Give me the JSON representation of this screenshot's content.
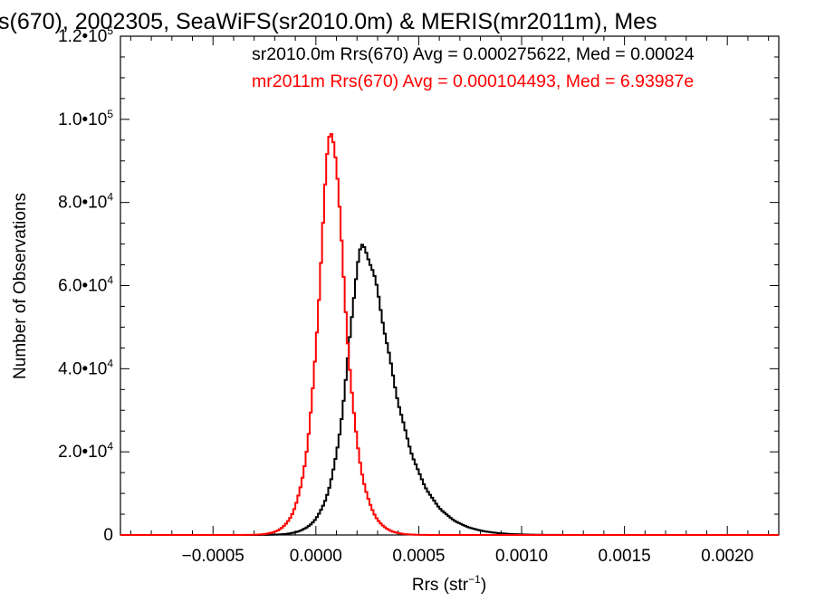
{
  "chart_data": {
    "type": "line",
    "title": "s(670), 2002305, SeaWiFS(sr2010.0m) & MERIS(mr2011m), Mes",
    "xlabel": {
      "main": "Rrs (str",
      "sup": "−1",
      "tail": ")"
    },
    "ylabel": "Number of Observations",
    "xlim": [
      -0.00095,
      0.00225
    ],
    "ylim": [
      0,
      120000
    ],
    "x_ticks": [
      {
        "value": -0.0005,
        "label": "−0.0005"
      },
      {
        "value": 0.0,
        "label": "0.0000"
      },
      {
        "value": 0.0005,
        "label": "0.0005"
      },
      {
        "value": 0.001,
        "label": "0.0010"
      },
      {
        "value": 0.0015,
        "label": "0.0015"
      },
      {
        "value": 0.002,
        "label": "0.0020"
      }
    ],
    "y_ticks": [
      {
        "value": 0,
        "mant": "0",
        "exp": ""
      },
      {
        "value": 20000,
        "mant": "2.0•10",
        "exp": "4"
      },
      {
        "value": 40000,
        "mant": "4.0•10",
        "exp": "4"
      },
      {
        "value": 60000,
        "mant": "6.0•10",
        "exp": "4"
      },
      {
        "value": 80000,
        "mant": "8.0•10",
        "exp": "4"
      },
      {
        "value": 100000,
        "mant": "1.0•10",
        "exp": "5"
      },
      {
        "value": 120000,
        "mant": "1.2•10",
        "exp": "5"
      }
    ],
    "annotations": [
      {
        "text": "sr2010.0m Rrs(670) Avg = 0.000275622, Med = 0.00024",
        "color": "#000000"
      },
      {
        "text": "mr2011m Rrs(670) Avg = 0.000104493, Med = 6.93987e",
        "color": "#ff0000"
      }
    ],
    "series": [
      {
        "color": "#000000",
        "peak_x": 0.000225,
        "peak_y": 69000,
        "sigma_left": 7.5e-05,
        "sigma_right": 0.000145
      },
      {
        "color": "#ff0000",
        "peak_x": 7.5e-05,
        "peak_y": 97000,
        "sigma_left": 6.2e-05,
        "sigma_right": 6.8e-05
      }
    ]
  }
}
